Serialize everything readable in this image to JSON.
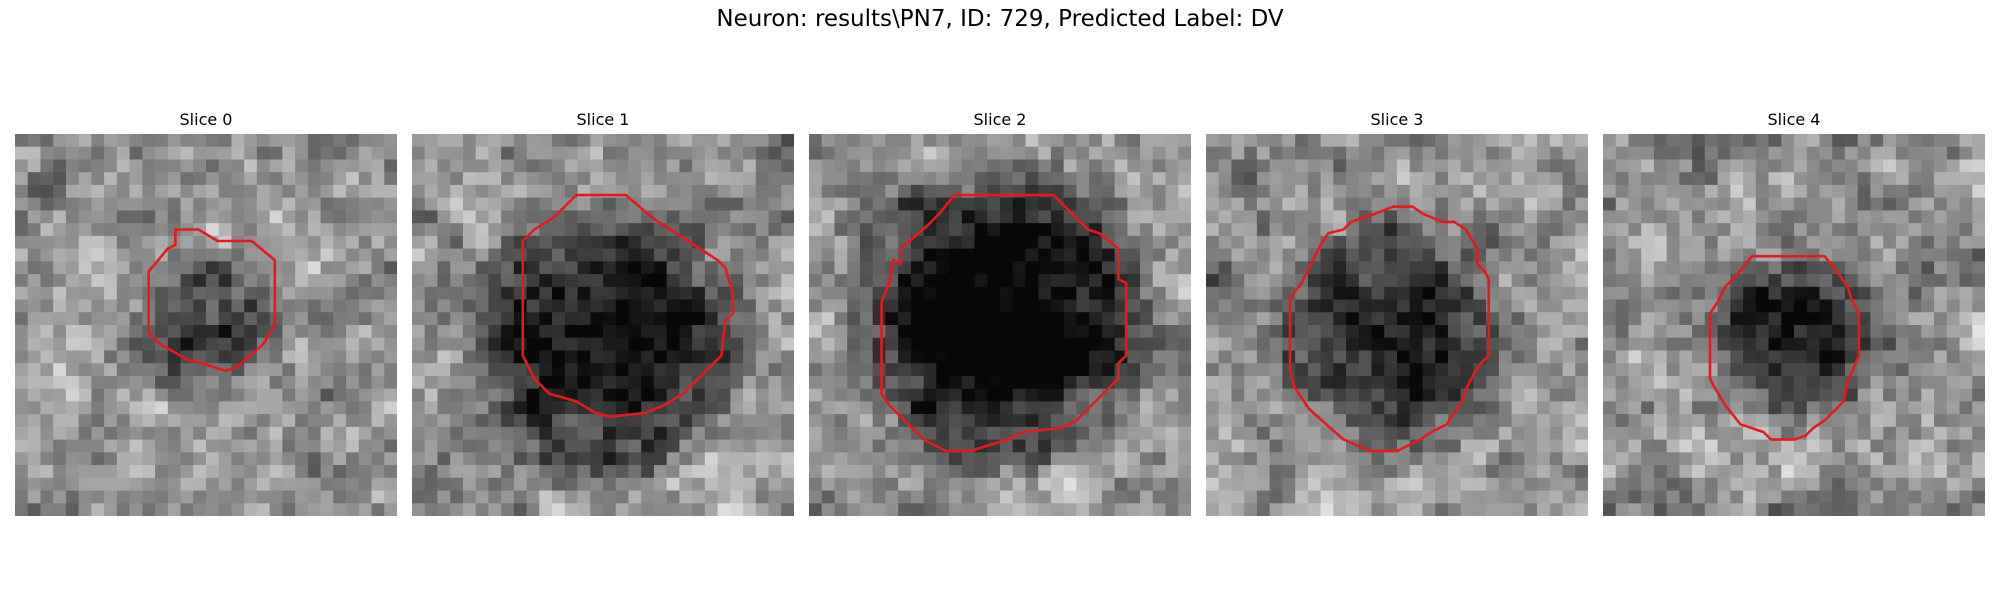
{
  "figure": {
    "title": "Neuron: results\\PN7, ID: 729, Predicted Label: DV"
  },
  "slices": [
    {
      "label": "Slice 0",
      "seed": 11,
      "dark_center": [
        0.5,
        0.52
      ],
      "dark_radius": 0.18,
      "dark_strength": 0.35,
      "contour": [
        [
          0.42,
          0.25
        ],
        [
          0.48,
          0.25
        ],
        [
          0.53,
          0.28
        ],
        [
          0.62,
          0.28
        ],
        [
          0.68,
          0.33
        ],
        [
          0.68,
          0.5
        ],
        [
          0.65,
          0.55
        ],
        [
          0.58,
          0.61
        ],
        [
          0.55,
          0.62
        ],
        [
          0.52,
          0.61
        ],
        [
          0.49,
          0.6
        ],
        [
          0.45,
          0.59
        ],
        [
          0.38,
          0.55
        ],
        [
          0.35,
          0.52
        ],
        [
          0.35,
          0.36
        ],
        [
          0.4,
          0.3
        ],
        [
          0.42,
          0.29
        ]
      ]
    },
    {
      "label": "Slice 1",
      "seed": 23,
      "dark_center": [
        0.5,
        0.55
      ],
      "dark_radius": 0.32,
      "dark_strength": 0.55,
      "contour": [
        [
          0.43,
          0.16
        ],
        [
          0.56,
          0.16
        ],
        [
          0.63,
          0.22
        ],
        [
          0.8,
          0.33
        ],
        [
          0.82,
          0.35
        ],
        [
          0.84,
          0.42
        ],
        [
          0.84,
          0.47
        ],
        [
          0.82,
          0.49
        ],
        [
          0.81,
          0.58
        ],
        [
          0.71,
          0.68
        ],
        [
          0.66,
          0.71
        ],
        [
          0.61,
          0.73
        ],
        [
          0.52,
          0.74
        ],
        [
          0.48,
          0.73
        ],
        [
          0.43,
          0.7
        ],
        [
          0.36,
          0.68
        ],
        [
          0.32,
          0.64
        ],
        [
          0.29,
          0.58
        ],
        [
          0.29,
          0.55
        ],
        [
          0.29,
          0.28
        ],
        [
          0.32,
          0.25
        ],
        [
          0.37,
          0.22
        ],
        [
          0.4,
          0.19
        ]
      ]
    },
    {
      "label": "Slice 2",
      "seed": 37,
      "dark_center": [
        0.5,
        0.48
      ],
      "dark_radius": 0.34,
      "dark_strength": 0.7,
      "contour": [
        [
          0.38,
          0.16
        ],
        [
          0.64,
          0.16
        ],
        [
          0.73,
          0.25
        ],
        [
          0.76,
          0.26
        ],
        [
          0.81,
          0.3
        ],
        [
          0.81,
          0.38
        ],
        [
          0.83,
          0.39
        ],
        [
          0.83,
          0.58
        ],
        [
          0.81,
          0.6
        ],
        [
          0.81,
          0.64
        ],
        [
          0.7,
          0.75
        ],
        [
          0.66,
          0.77
        ],
        [
          0.56,
          0.78
        ],
        [
          0.52,
          0.8
        ],
        [
          0.42,
          0.83
        ],
        [
          0.36,
          0.83
        ],
        [
          0.3,
          0.8
        ],
        [
          0.21,
          0.71
        ],
        [
          0.19,
          0.68
        ],
        [
          0.19,
          0.44
        ],
        [
          0.21,
          0.39
        ],
        [
          0.22,
          0.33
        ],
        [
          0.24,
          0.34
        ],
        [
          0.24,
          0.3
        ],
        [
          0.31,
          0.24
        ],
        [
          0.34,
          0.21
        ]
      ]
    },
    {
      "label": "Slice 3",
      "seed": 51,
      "dark_center": [
        0.5,
        0.53
      ],
      "dark_radius": 0.28,
      "dark_strength": 0.45,
      "contour": [
        [
          0.49,
          0.19
        ],
        [
          0.54,
          0.19
        ],
        [
          0.57,
          0.21
        ],
        [
          0.62,
          0.23
        ],
        [
          0.65,
          0.23
        ],
        [
          0.68,
          0.25
        ],
        [
          0.71,
          0.3
        ],
        [
          0.71,
          0.34
        ],
        [
          0.73,
          0.36
        ],
        [
          0.74,
          0.38
        ],
        [
          0.74,
          0.58
        ],
        [
          0.72,
          0.6
        ],
        [
          0.7,
          0.63
        ],
        [
          0.68,
          0.67
        ],
        [
          0.67,
          0.7
        ],
        [
          0.63,
          0.76
        ],
        [
          0.59,
          0.78
        ],
        [
          0.56,
          0.8
        ],
        [
          0.5,
          0.83
        ],
        [
          0.43,
          0.83
        ],
        [
          0.36,
          0.8
        ],
        [
          0.27,
          0.72
        ],
        [
          0.25,
          0.69
        ],
        [
          0.23,
          0.66
        ],
        [
          0.22,
          0.62
        ],
        [
          0.22,
          0.43
        ],
        [
          0.25,
          0.39
        ],
        [
          0.27,
          0.35
        ],
        [
          0.29,
          0.31
        ],
        [
          0.3,
          0.29
        ],
        [
          0.32,
          0.26
        ],
        [
          0.36,
          0.25
        ],
        [
          0.38,
          0.23
        ],
        [
          0.44,
          0.21
        ]
      ]
    },
    {
      "label": "Slice 4",
      "seed": 67,
      "dark_center": [
        0.5,
        0.53
      ],
      "dark_radius": 0.2,
      "dark_strength": 0.45,
      "contour": [
        [
          0.39,
          0.32
        ],
        [
          0.58,
          0.32
        ],
        [
          0.62,
          0.37
        ],
        [
          0.64,
          0.4
        ],
        [
          0.65,
          0.43
        ],
        [
          0.67,
          0.47
        ],
        [
          0.67,
          0.58
        ],
        [
          0.64,
          0.65
        ],
        [
          0.63,
          0.7
        ],
        [
          0.58,
          0.75
        ],
        [
          0.55,
          0.77
        ],
        [
          0.53,
          0.79
        ],
        [
          0.5,
          0.8
        ],
        [
          0.44,
          0.8
        ],
        [
          0.42,
          0.78
        ],
        [
          0.36,
          0.76
        ],
        [
          0.32,
          0.71
        ],
        [
          0.29,
          0.66
        ],
        [
          0.28,
          0.64
        ],
        [
          0.28,
          0.47
        ],
        [
          0.3,
          0.44
        ],
        [
          0.32,
          0.4
        ],
        [
          0.35,
          0.37
        ]
      ]
    }
  ],
  "style": {
    "contour_color": "#e8191c",
    "colormap": "grayscale"
  }
}
